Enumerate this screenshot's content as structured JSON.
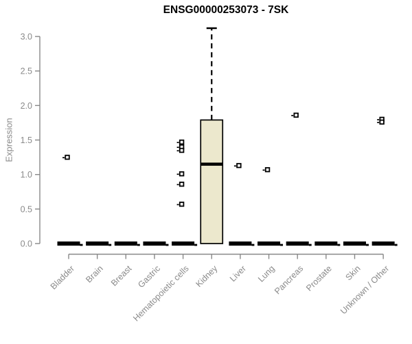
{
  "chart_data": {
    "type": "boxplot",
    "title": "ENSG00000253073 - 7SK",
    "ylabel": "Expression",
    "xlabel": "",
    "ylim": [
      0.0,
      3.0
    ],
    "yticks": [
      "0.0",
      "0.5",
      "1.0",
      "1.5",
      "2.0",
      "2.5",
      "3.0"
    ],
    "grid": "off",
    "legend": "none",
    "categories": [
      "Bladder",
      "Brain",
      "Breast",
      "Gastric",
      "Hematopoietic cells",
      "Kidney",
      "Liver",
      "Lung",
      "Pancreas",
      "Prostate",
      "Skin",
      "Unknown / Other"
    ],
    "boxes": [
      {
        "category": "Bladder",
        "whisker_low": 0,
        "q1": 0,
        "median": 0,
        "q3": 0,
        "whisker_high": 0,
        "outliers": [
          1.25
        ]
      },
      {
        "category": "Brain",
        "whisker_low": 0,
        "q1": 0,
        "median": 0,
        "q3": 0,
        "whisker_high": 0,
        "outliers": []
      },
      {
        "category": "Breast",
        "whisker_low": 0,
        "q1": 0,
        "median": 0,
        "q3": 0,
        "whisker_high": 0,
        "outliers": []
      },
      {
        "category": "Gastric",
        "whisker_low": 0,
        "q1": 0,
        "median": 0,
        "q3": 0,
        "whisker_high": 0,
        "outliers": []
      },
      {
        "category": "Hematopoietic cells",
        "whisker_low": 0,
        "q1": 0,
        "median": 0,
        "q3": 0,
        "whisker_high": 0,
        "outliers": [
          1.47,
          1.4,
          1.35,
          1.01,
          0.86,
          0.57
        ]
      },
      {
        "category": "Kidney",
        "whisker_low": 0,
        "q1": 0.0,
        "median": 1.15,
        "q3": 1.79,
        "whisker_high": 3.12,
        "outliers": []
      },
      {
        "category": "Liver",
        "whisker_low": 0,
        "q1": 0,
        "median": 0,
        "q3": 0,
        "whisker_high": 0,
        "outliers": [
          1.13
        ]
      },
      {
        "category": "Lung",
        "whisker_low": 0,
        "q1": 0,
        "median": 0,
        "q3": 0,
        "whisker_high": 0,
        "outliers": [
          1.07
        ]
      },
      {
        "category": "Pancreas",
        "whisker_low": 0,
        "q1": 0,
        "median": 0,
        "q3": 0,
        "whisker_high": 0,
        "outliers": [
          1.86
        ]
      },
      {
        "category": "Prostate",
        "whisker_low": 0,
        "q1": 0,
        "median": 0,
        "q3": 0,
        "whisker_high": 0,
        "outliers": []
      },
      {
        "category": "Skin",
        "whisker_low": 0,
        "q1": 0,
        "median": 0,
        "q3": 0,
        "whisker_high": 0,
        "outliers": []
      },
      {
        "category": "Unknown / Other",
        "whisker_low": 0,
        "q1": 0,
        "median": 0,
        "q3": 0,
        "whisker_high": 0,
        "outliers": [
          1.8,
          1.76
        ]
      }
    ],
    "colors": {
      "box_fill": "#ECE8CD",
      "box_border": "#000000",
      "median": "#000000",
      "whisker": "#000000",
      "outlier_border": "#000000",
      "outlier_fill": "#ffffff",
      "axis": "#888888",
      "tick_text": "#8a8a8a",
      "title_text": "#000000",
      "background": "#ffffff"
    }
  }
}
